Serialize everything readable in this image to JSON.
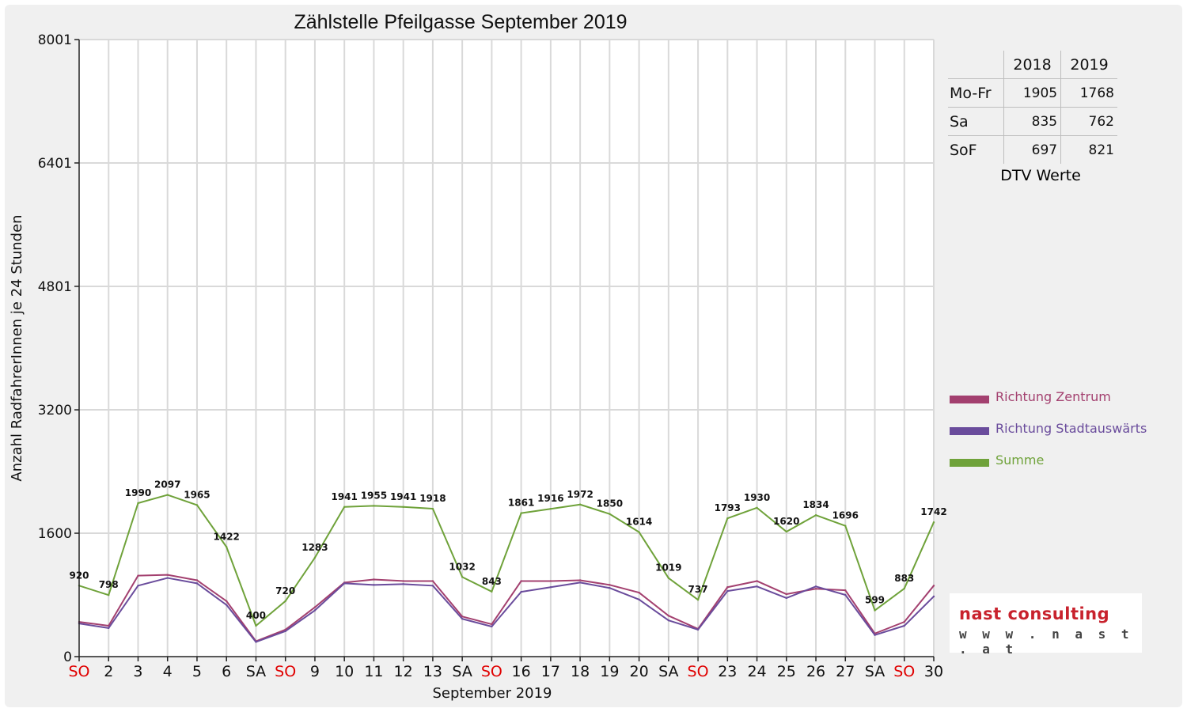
{
  "chart_data": {
    "type": "line",
    "title": "Zählstelle Pfeilgasse September 2019",
    "xlabel": "September 2019",
    "ylabel": "Anzahl RadfahrerInnen je 24 Stunden",
    "ylim": [
      0,
      8001
    ],
    "yticks": [
      "0",
      "1600",
      "3200",
      "4801",
      "6401",
      "8001"
    ],
    "ytick_values": [
      0,
      1600,
      3200,
      4801,
      6401,
      8001
    ],
    "grid": true,
    "legend_position": "right",
    "categories": [
      "SO",
      "2",
      "3",
      "4",
      "5",
      "6",
      "SA",
      "SO",
      "9",
      "10",
      "11",
      "12",
      "13",
      "SA",
      "SO",
      "16",
      "17",
      "18",
      "19",
      "20",
      "SA",
      "SO",
      "23",
      "24",
      "25",
      "26",
      "27",
      "SA",
      "SO",
      "30"
    ],
    "weekend_flags": [
      true,
      false,
      false,
      false,
      false,
      false,
      false,
      true,
      false,
      false,
      false,
      false,
      false,
      false,
      true,
      false,
      false,
      false,
      false,
      false,
      false,
      true,
      false,
      false,
      false,
      false,
      false,
      false,
      true,
      false
    ],
    "series": [
      {
        "name": "Richtung Zentrum",
        "color": "#a3406f",
        "values": [
          450,
          400,
          1050,
          1060,
          990,
          720,
          200,
          350,
          640,
          960,
          1000,
          980,
          980,
          520,
          420,
          980,
          980,
          990,
          930,
          830,
          530,
          360,
          900,
          980,
          810,
          880,
          860,
          300,
          450,
          920
        ]
      },
      {
        "name": "Richtung Stadtauswärts",
        "color": "#6a4c9c",
        "values": [
          430,
          370,
          920,
          1020,
          950,
          670,
          190,
          330,
          600,
          950,
          930,
          940,
          920,
          490,
          390,
          840,
          900,
          960,
          890,
          740,
          470,
          350,
          850,
          910,
          760,
          910,
          800,
          280,
          400,
          780
        ]
      },
      {
        "name": "Summe",
        "color": "#6fa23a",
        "values": [
          920,
          798,
          1990,
          2097,
          1965,
          1422,
          400,
          720,
          1283,
          1941,
          1955,
          1941,
          1918,
          1032,
          843,
          1861,
          1916,
          1972,
          1850,
          1614,
          1019,
          737,
          1793,
          1930,
          1620,
          1834,
          1696,
          599,
          883,
          1742
        ]
      }
    ],
    "data_labels": [
      "920",
      "798",
      "1990",
      "2097",
      "1965",
      "1422",
      "400",
      "720",
      "1283",
      "1941",
      "1955",
      "1941",
      "1918",
      "1032",
      "843",
      "1861",
      "1916",
      "1972",
      "1850",
      "1614",
      "1019",
      "737",
      "1793",
      "1930",
      "1620",
      "1834",
      "1696",
      "599",
      "883",
      "1742"
    ]
  },
  "dtv_table": {
    "headers": [
      "",
      "2018",
      "2019"
    ],
    "rows": [
      {
        "label": "Mo-Fr",
        "v2018": "1905",
        "v2019": "1768"
      },
      {
        "label": "Sa",
        "v2018": "835",
        "v2019": "762"
      },
      {
        "label": "SoF",
        "v2018": "697",
        "v2019": "821"
      }
    ],
    "caption": "DTV Werte"
  },
  "logo": {
    "name": "nast consulting",
    "url": "w w w . n a s t . a t"
  },
  "colors": {
    "weekend": "#e00000",
    "background": "#f0f0f0",
    "plot_background": "#ffffff",
    "grid": "#d9d9d9"
  }
}
